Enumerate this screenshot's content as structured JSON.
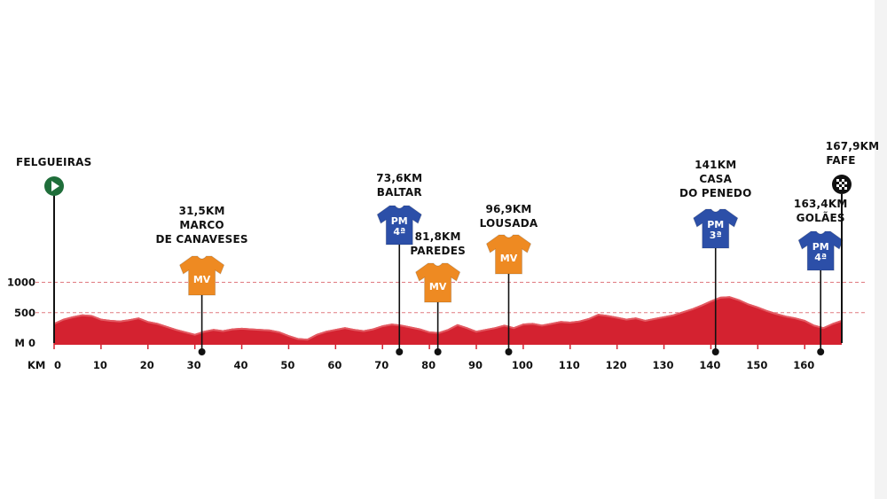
{
  "chart_data": {
    "type": "area",
    "xlabel": "KM",
    "ylabel": "M",
    "xlim": [
      0,
      167.9
    ],
    "ylim": [
      0,
      1000
    ],
    "x_ticks": [
      0,
      10,
      20,
      30,
      40,
      50,
      60,
      70,
      80,
      90,
      100,
      110,
      120,
      130,
      140,
      150,
      160
    ],
    "y_ticks": [
      {
        "value": 0,
        "label": "M 0"
      },
      {
        "value": 500,
        "label": "500"
      },
      {
        "value": 1000,
        "label": "1000"
      }
    ],
    "dashed_levels": [
      500,
      1000
    ],
    "colors": {
      "profile": "#d42230",
      "profile_top": "#e35a62",
      "axis": "#d42230",
      "jersey_orange": "#ee8a22",
      "jersey_blue": "#2c4fa8",
      "start": "#1f6e3a"
    },
    "elevation": {
      "x": [
        0,
        2,
        4,
        6,
        8,
        10,
        12,
        14,
        16,
        18,
        20,
        22,
        24,
        26,
        28,
        30,
        32,
        34,
        36,
        38,
        40,
        42,
        44,
        46,
        48,
        50,
        52,
        54,
        56,
        58,
        60,
        62,
        64,
        66,
        68,
        70,
        72,
        74,
        76,
        78,
        80,
        82,
        84,
        86,
        88,
        90,
        92,
        94,
        96,
        98,
        100,
        102,
        104,
        106,
        108,
        110,
        112,
        114,
        116,
        118,
        120,
        122,
        124,
        126,
        128,
        130,
        132,
        134,
        136,
        138,
        140,
        142,
        144,
        146,
        148,
        150,
        152,
        154,
        156,
        158,
        160,
        162,
        164,
        166,
        167.9
      ],
      "y": [
        330,
        400,
        440,
        470,
        460,
        400,
        380,
        370,
        390,
        420,
        360,
        330,
        280,
        230,
        190,
        150,
        200,
        230,
        210,
        240,
        250,
        240,
        230,
        220,
        190,
        130,
        80,
        70,
        150,
        200,
        230,
        260,
        230,
        210,
        240,
        290,
        320,
        300,
        270,
        240,
        190,
        180,
        230,
        310,
        260,
        200,
        230,
        260,
        300,
        260,
        320,
        330,
        300,
        330,
        360,
        350,
        370,
        410,
        480,
        460,
        430,
        400,
        420,
        380,
        410,
        440,
        470,
        520,
        570,
        630,
        700,
        760,
        770,
        720,
        650,
        600,
        540,
        490,
        450,
        420,
        380,
        300,
        260,
        330,
        380
      ]
    },
    "points": [
      {
        "km": 0,
        "name": "FELGUEIRAS",
        "type": "start"
      },
      {
        "km": 31.5,
        "km_label": "31,5KM",
        "name1": "MARCO",
        "name2": "DE CANAVESES",
        "type": "MV"
      },
      {
        "km": 73.6,
        "km_label": "73,6KM",
        "name1": "BALTAR",
        "type": "PM",
        "cat": "4ª"
      },
      {
        "km": 81.8,
        "km_label": "81,8KM",
        "name1": "PAREDES",
        "type": "MV"
      },
      {
        "km": 96.9,
        "km_label": "96,9KM",
        "name1": "LOUSADA",
        "type": "MV"
      },
      {
        "km": 141,
        "km_label": "141KM",
        "name1": "CASA",
        "name2": "DO PENEDO",
        "type": "PM",
        "cat": "3ª"
      },
      {
        "km": 163.4,
        "km_label": "163,4KM",
        "name1": "GOLÃES",
        "type": "PM",
        "cat": "4ª"
      },
      {
        "km": 167.9,
        "km_label": "167,9KM",
        "name1": "FAFE",
        "type": "finish"
      }
    ]
  }
}
